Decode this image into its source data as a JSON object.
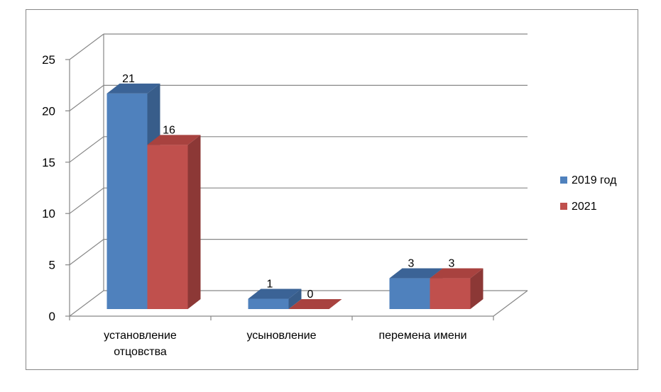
{
  "chart_data": {
    "type": "bar",
    "title": "",
    "xlabel": "",
    "ylabel": "",
    "ylim": [
      0,
      25
    ],
    "yticks": [
      0,
      5,
      10,
      15,
      20,
      25
    ],
    "grid": true,
    "legend_position": "right",
    "categories": [
      [
        "установление",
        "отцовства"
      ],
      [
        "усыновление"
      ],
      [
        "перемена имени"
      ]
    ],
    "series": [
      {
        "name": "2019 год",
        "values": [
          21,
          1,
          3
        ],
        "color": "#4F81BD",
        "side": "#385D8A",
        "top": "#3B6396"
      },
      {
        "name": "2021",
        "values": [
          16,
          0,
          3
        ],
        "color": "#C0504D",
        "side": "#8C3836",
        "top": "#A8423F"
      }
    ]
  }
}
